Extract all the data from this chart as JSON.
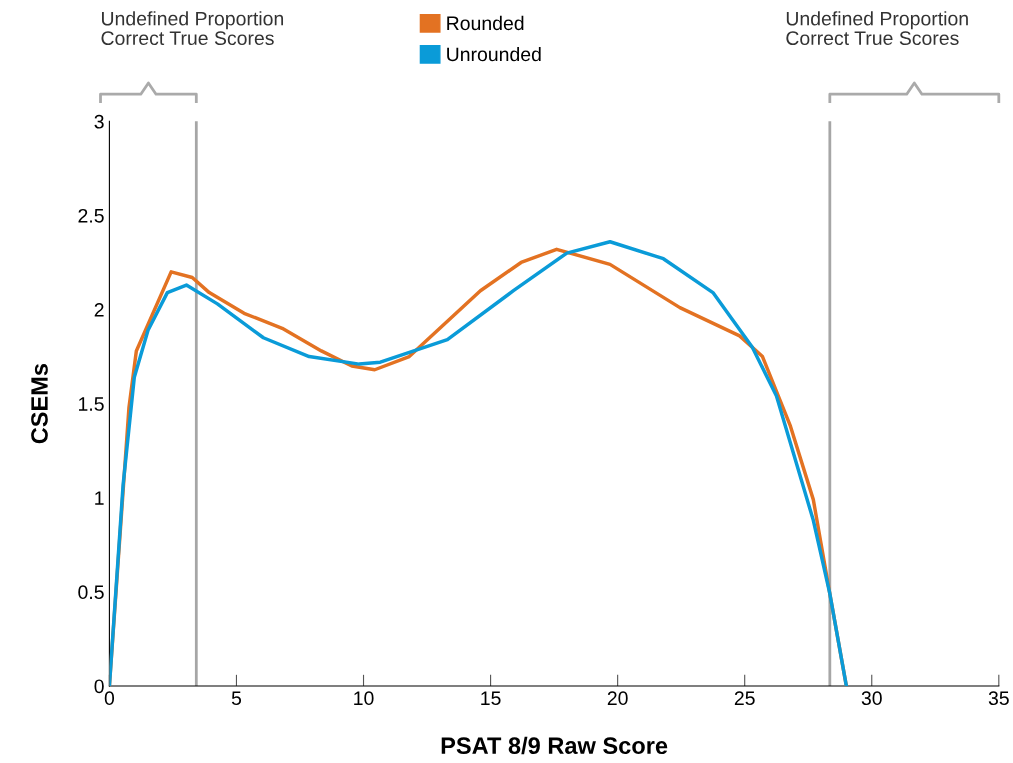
{
  "chart_data": {
    "type": "line",
    "xlabel": "PSAT 8/9 Raw Score",
    "ylabel": "CSEMs",
    "xlim": [
      0,
      35
    ],
    "ylim": [
      0,
      3
    ],
    "xticks": [
      0,
      5,
      10,
      15,
      20,
      25,
      30,
      35
    ],
    "yticks": [
      0,
      0.5,
      1,
      1.5,
      2,
      2.5,
      3
    ],
    "series": [
      {
        "name": "Rounded",
        "color": "#e37222",
        "x": [
          0,
          0.77,
          1.06,
          2.43,
          3.26,
          3.93,
          5.3,
          6.8,
          8.34,
          9.54,
          10.44,
          11.8,
          14.6,
          16.2,
          17.6,
          19.7,
          22.45,
          24.8,
          25.7,
          26.8,
          27.7,
          28.35,
          29.0
        ],
        "values": [
          0,
          1.48,
          1.78,
          2.2,
          2.17,
          2.09,
          1.98,
          1.9,
          1.78,
          1.7,
          1.68,
          1.75,
          2.1,
          2.25,
          2.32,
          2.24,
          2.01,
          1.86,
          1.75,
          1.38,
          0.99,
          0.49,
          0
        ]
      },
      {
        "name": "Unrounded",
        "color": "#0a9bd8",
        "x": [
          0,
          0.54,
          0.98,
          1.52,
          2.28,
          3.03,
          4.25,
          6.06,
          7.86,
          9.83,
          10.66,
          13.3,
          15.9,
          18.0,
          19.7,
          21.8,
          23.75,
          25.3,
          26.25,
          27.7,
          28.35,
          29.0
        ],
        "values": [
          0,
          1.07,
          1.64,
          1.89,
          2.09,
          2.13,
          2.03,
          1.85,
          1.75,
          1.71,
          1.72,
          1.84,
          2.1,
          2.3,
          2.36,
          2.27,
          2.09,
          1.8,
          1.54,
          0.88,
          0.49,
          0
        ]
      }
    ],
    "ref_lines": [
      {
        "axis": "x",
        "value": 3.42,
        "color": "#a6a6a6"
      },
      {
        "axis": "x",
        "value": 28.35,
        "color": "#a6a6a6"
      }
    ],
    "annotations": [
      "Undefined Proportion\nCorrect True Scores",
      "Undefined Proportion\nCorrect True Scores"
    ],
    "legend": "top",
    "grid": false,
    "marker": "none",
    "line_style": "solid"
  }
}
